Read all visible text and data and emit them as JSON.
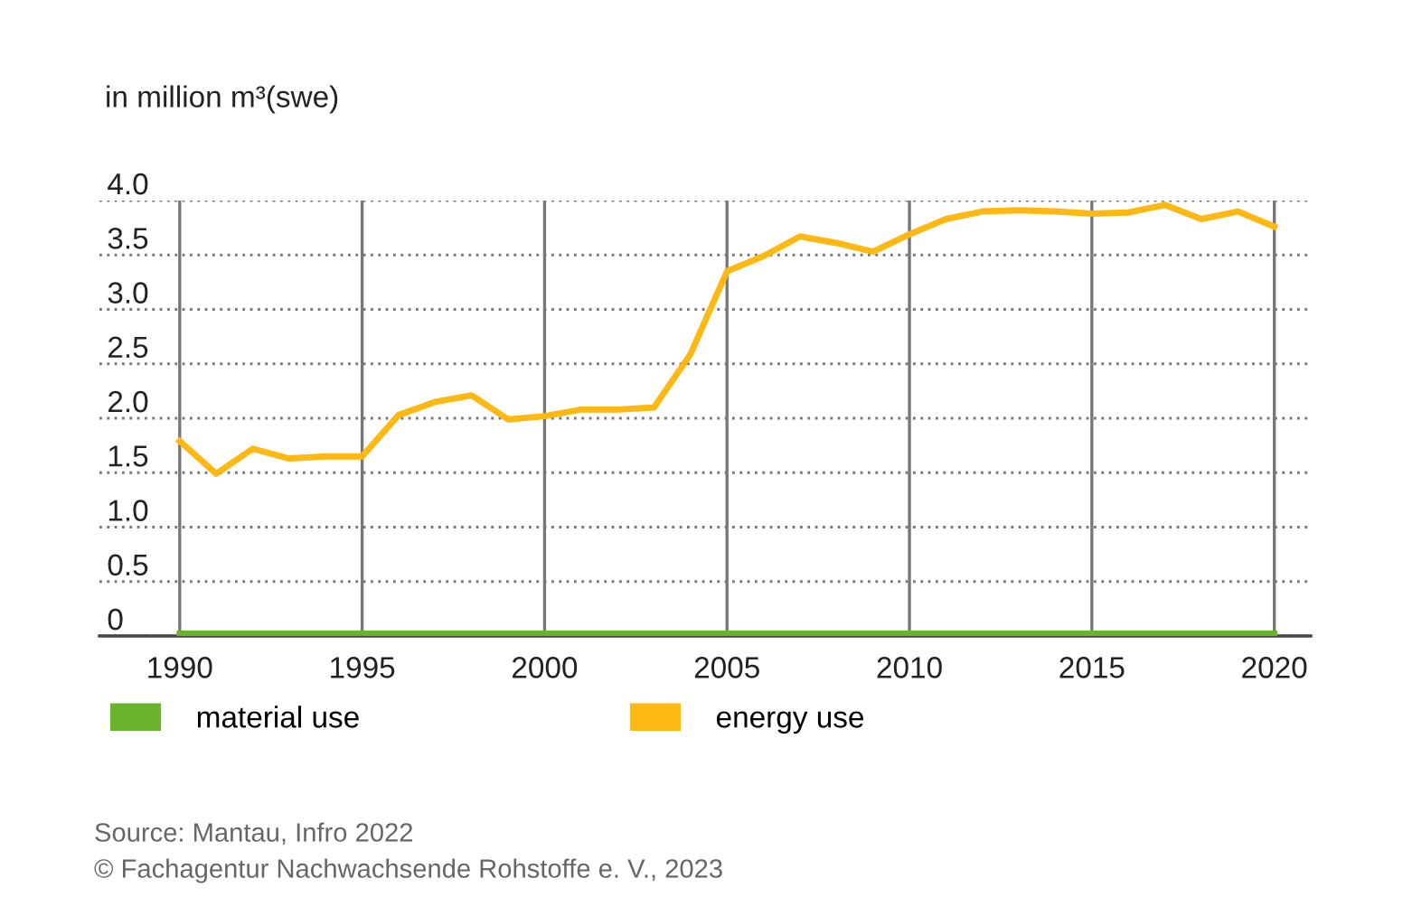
{
  "chart_data": {
    "type": "line",
    "ylabel": "in million m³(swe)",
    "x": [
      1990,
      1991,
      1992,
      1993,
      1994,
      1995,
      1996,
      1997,
      1998,
      1999,
      2000,
      2001,
      2002,
      2003,
      2004,
      2005,
      2006,
      2007,
      2008,
      2009,
      2010,
      2011,
      2012,
      2013,
      2014,
      2015,
      2016,
      2017,
      2018,
      2019,
      2020
    ],
    "series": [
      {
        "name": "material use",
        "color": "#6ab42d",
        "values": [
          0.02,
          0.02,
          0.02,
          0.02,
          0.02,
          0.02,
          0.02,
          0.02,
          0.02,
          0.02,
          0.02,
          0.02,
          0.02,
          0.02,
          0.02,
          0.02,
          0.02,
          0.02,
          0.02,
          0.02,
          0.02,
          0.02,
          0.02,
          0.02,
          0.02,
          0.02,
          0.02,
          0.02,
          0.02,
          0.02,
          0.02
        ]
      },
      {
        "name": "energy use",
        "color": "#fdb813",
        "values": [
          1.79,
          1.49,
          1.72,
          1.63,
          1.65,
          1.65,
          2.03,
          2.15,
          2.21,
          1.99,
          2.02,
          2.08,
          2.08,
          2.1,
          2.59,
          3.35,
          3.49,
          3.67,
          3.61,
          3.53,
          3.69,
          3.83,
          3.9,
          3.91,
          3.9,
          3.88,
          3.89,
          3.96,
          3.83,
          3.9,
          3.76
        ]
      }
    ],
    "xlim": [
      1987.8,
      2021
    ],
    "ylim": [
      0,
      4.0
    ],
    "xticks": [
      1990,
      1995,
      2000,
      2005,
      2010,
      2015,
      2020
    ],
    "yticks": [
      0,
      {
        "value": 0.5,
        "label": "0.5"
      },
      {
        "value": 1.0,
        "label": "1.0"
      },
      {
        "value": 1.5,
        "label": "1.5"
      },
      {
        "value": 2.0,
        "label": "2.0"
      },
      {
        "value": 2.5,
        "label": "2.5"
      },
      {
        "value": 3.0,
        "label": "3.0"
      },
      {
        "value": 3.5,
        "label": "3.5"
      },
      {
        "value": 4.0,
        "label": "4.0"
      }
    ],
    "grid": true,
    "legend": "bottom",
    "marker": "none",
    "line_style": "solid",
    "annotations": [
      "Source: Mantau, Infro 2022",
      "© Fachagentur Nachwachsende Rohstoffe e. V., 2023"
    ]
  }
}
